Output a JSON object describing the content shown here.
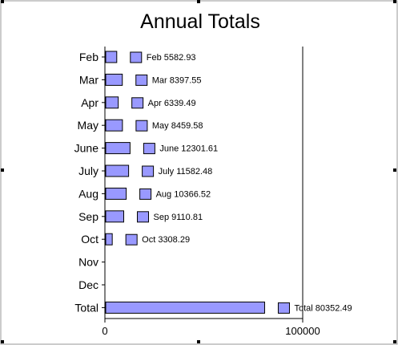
{
  "chart_data": {
    "type": "bar",
    "orientation": "horizontal",
    "title": "Annual Totals",
    "xlabel": "",
    "ylabel": "",
    "categories": [
      "Feb",
      "Mar",
      "Apr",
      "May",
      "June",
      "July",
      "Aug",
      "Sep",
      "Oct",
      "Nov",
      "Dec",
      "Total"
    ],
    "values": [
      5582.93,
      8397.55,
      6339.49,
      8459.58,
      12301.61,
      11582.48,
      10366.52,
      9110.81,
      3308.29,
      null,
      null,
      80352.49
    ],
    "data_labels": [
      "Feb 5582.93",
      "Mar 8397.55",
      "Apr 6339.49",
      "May 8459.58",
      "June 12301.61",
      "July 11582.48",
      "Aug 10366.52",
      "Sep 9110.81",
      "Oct 3308.29",
      "",
      "",
      "Total 80352.49"
    ],
    "xlim": [
      0,
      100000
    ],
    "x_ticks": [
      0,
      100000
    ],
    "x_tick_labels": [
      "0",
      "100000"
    ],
    "grid": false,
    "legend": "none",
    "bar_color": "#9999ff",
    "bar_edge_color": "#000000"
  }
}
